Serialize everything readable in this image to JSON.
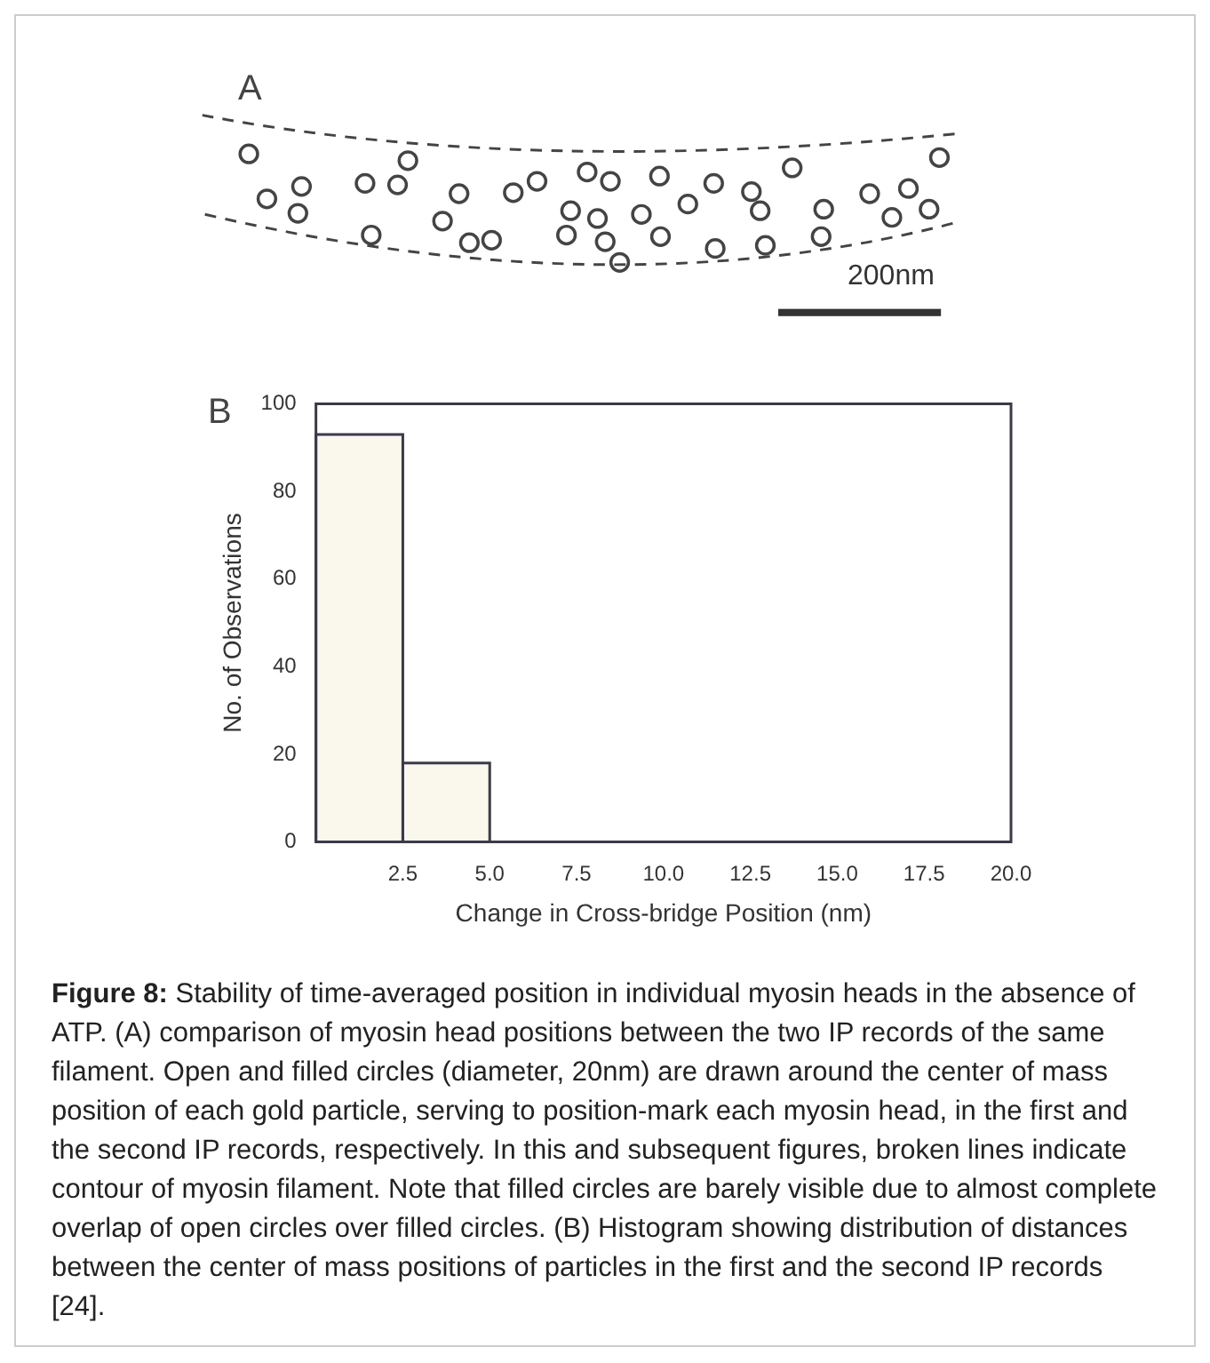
{
  "chart_data": {
    "type": "histogram",
    "bins": [
      0,
      2.5,
      5
    ],
    "values": [
      93,
      18
    ],
    "color": "#faf7ec",
    "xlabel": "Change in Cross-bridge Position (nm)",
    "ylabel": "No. of Observations",
    "xlim": [
      0,
      20
    ],
    "xticks": [
      {
        "value": 2.5,
        "label": "2.5"
      },
      {
        "value": 5,
        "label": "5.0"
      },
      {
        "value": 7.5,
        "label": "7.5"
      },
      {
        "value": 10,
        "label": "10.0"
      },
      {
        "value": 12.5,
        "label": "12.5"
      },
      {
        "value": 15,
        "label": "15.0"
      },
      {
        "value": 17.5,
        "label": "17.5"
      },
      {
        "value": 20,
        "label": "20.0"
      }
    ],
    "ylim": [
      0,
      100
    ],
    "yticks": [
      0,
      20,
      40,
      60,
      80,
      100
    ],
    "grid": false,
    "legend": false,
    "annotations": [
      "A",
      "200nm",
      "B",
      "Figure 8: Stability of time-averaged position in individual myosin heads in the absence of ATP. (A) comparison of myosin head positions between the two IP records of the same filament. Open and filled circles (diameter, 20nm) are drawn around the center of mass position of each gold particle, serving to position-mark each myosin head, in the first and the second IP records, respectively. In this and subsequent figures, broken lines indicate contour of myosin filament. Note that filled circles are barely visible due to almost complete overlap of open circles over filled circles. (B) Histogram showing distribution of distances between the center of mass positions of particles in the first and the second IP records [24]."
    ]
  }
}
